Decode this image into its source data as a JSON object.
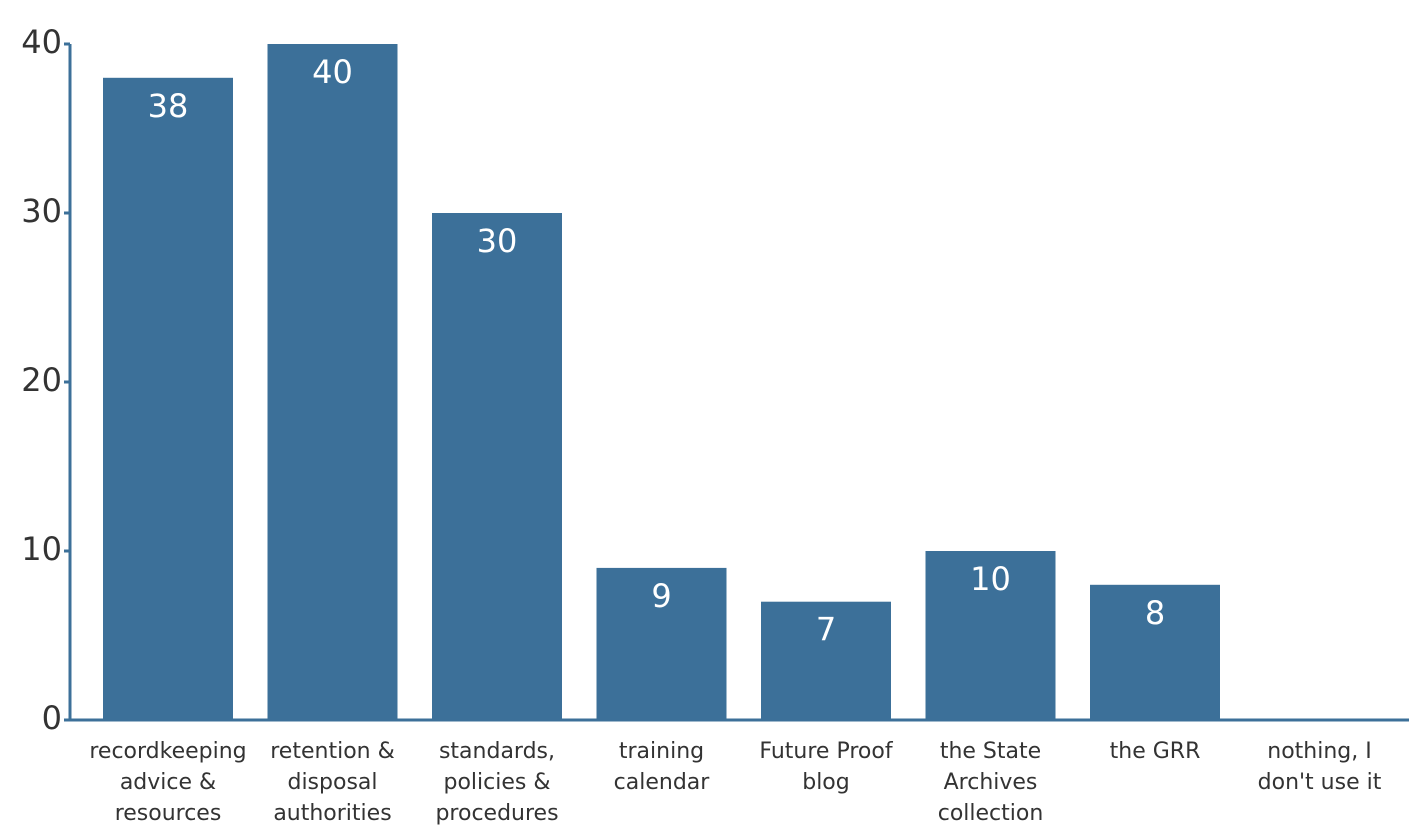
{
  "chart_data": {
    "type": "bar",
    "categories": [
      "recordkeeping advice & resources",
      "retention & disposal authorities",
      "standards, policies & procedures",
      "training calendar",
      "Future Proof blog",
      "the State Archives collection",
      "the GRR",
      "nothing, I don't use it"
    ],
    "values": [
      38,
      40,
      30,
      9,
      7,
      10,
      8,
      0
    ],
    "color": "#3c7099",
    "ylim": [
      0,
      40
    ],
    "yticks": [
      0,
      10,
      20,
      30,
      40
    ],
    "grid": false
  }
}
